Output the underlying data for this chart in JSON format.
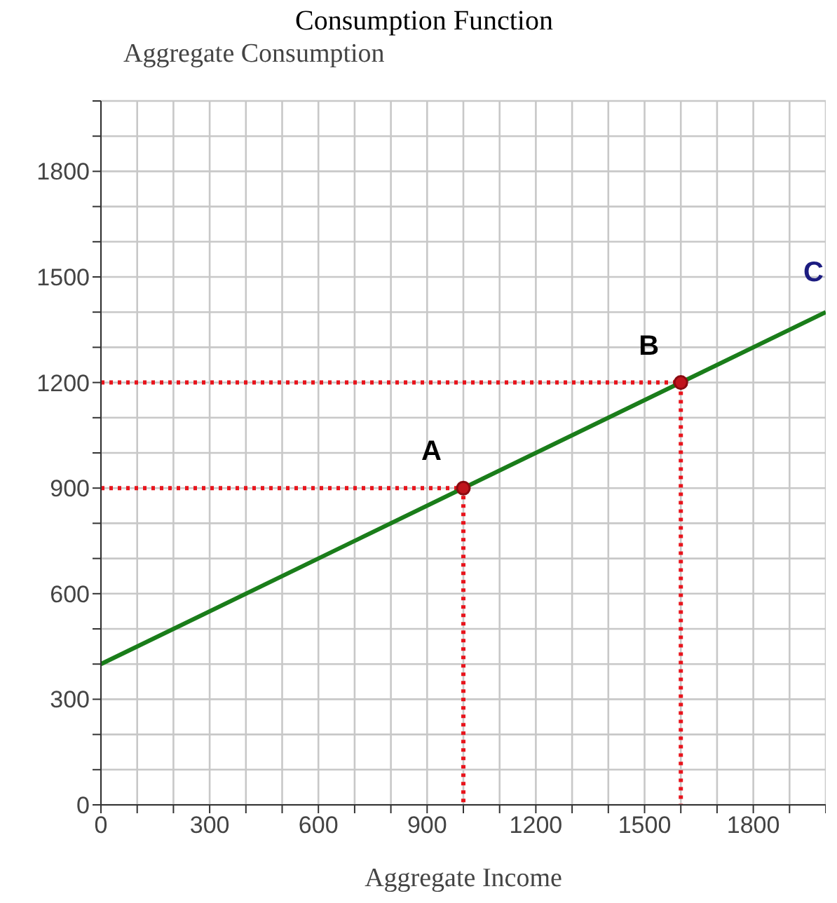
{
  "chart_data": {
    "type": "line",
    "title": "Consumption Function",
    "ylabel": "Aggregate Consumption",
    "xlabel": "Aggregate Income",
    "xlim": [
      0,
      2000
    ],
    "ylim": [
      0,
      2000
    ],
    "xticks": [
      0,
      {
        "value": 100,
        "label": null
      },
      {
        "value": 200,
        "label": null
      },
      300,
      {
        "value": 400,
        "label": null
      },
      {
        "value": 500,
        "label": null
      },
      600,
      {
        "value": 700,
        "label": null
      },
      {
        "value": 800,
        "label": null
      },
      900,
      {
        "value": 1000,
        "label": null
      },
      {
        "value": 1100,
        "label": null
      },
      1200,
      {
        "value": 1300,
        "label": null
      },
      {
        "value": 1400,
        "label": null
      },
      1500,
      {
        "value": 1600,
        "label": null
      },
      {
        "value": 1700,
        "label": null
      },
      1800,
      {
        "value": 1900,
        "label": null
      },
      {
        "value": 2000,
        "label": null
      }
    ],
    "yticks": [
      0,
      {
        "value": 100,
        "label": null
      },
      {
        "value": 200,
        "label": null
      },
      300,
      {
        "value": 400,
        "label": null
      },
      {
        "value": 500,
        "label": null
      },
      600,
      {
        "value": 700,
        "label": null
      },
      {
        "value": 800,
        "label": null
      },
      900,
      {
        "value": 1000,
        "label": null
      },
      {
        "value": 1100,
        "label": null
      },
      1200,
      {
        "value": 1300,
        "label": null
      },
      {
        "value": 1400,
        "label": null
      },
      1500,
      {
        "value": 1600,
        "label": null
      },
      {
        "value": 1700,
        "label": null
      },
      1800,
      {
        "value": 1900,
        "label": null
      },
      {
        "value": 2000,
        "label": null
      }
    ],
    "grid": true,
    "legend": false,
    "series": [
      {
        "type": "line",
        "color": "#e8141c",
        "line_style": "dotted",
        "marker": "none",
        "x": [
          0,
          1000,
          1000
        ],
        "values": [
          900,
          900,
          0
        ]
      },
      {
        "type": "line",
        "color": "#e8141c",
        "line_style": "dotted",
        "marker": "none",
        "x": [
          0,
          1600,
          1600
        ],
        "values": [
          1200,
          1200,
          0
        ]
      },
      {
        "type": "line",
        "name": "C",
        "color": "#1a7d1a",
        "line_style": "solid",
        "marker": "none",
        "x": [
          0,
          2000
        ],
        "values": [
          400,
          1400
        ]
      },
      {
        "type": "scatter",
        "color": "#c0141c",
        "marker": "circle",
        "x": [
          1000,
          1600
        ],
        "values": [
          900,
          1200
        ]
      }
    ],
    "annotations": [
      {
        "text": "A",
        "x": 1000,
        "y": 900
      },
      {
        "text": "B",
        "x": 1600,
        "y": 1200
      }
    ]
  }
}
